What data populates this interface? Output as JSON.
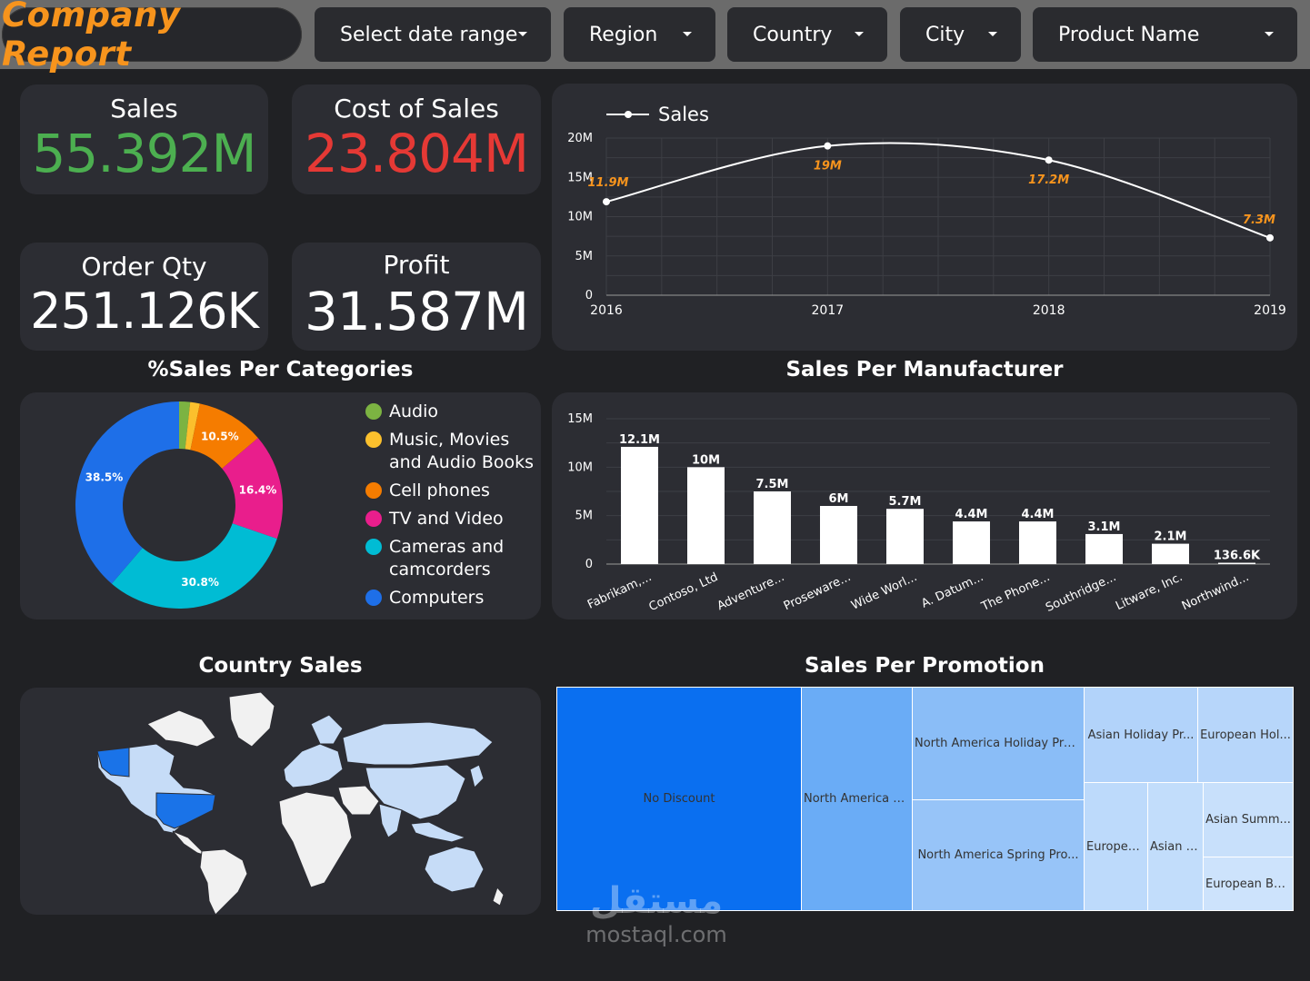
{
  "header": {
    "title": "Company Report",
    "filters": [
      "Select date range",
      "Region",
      "Country",
      "City",
      "Product Name"
    ]
  },
  "kpis": {
    "sales": {
      "label": "Sales",
      "value": "55.392M",
      "color": "#4caf50"
    },
    "cost": {
      "label": "Cost of Sales",
      "value": "23.804M",
      "color": "#e53935"
    },
    "order_qty": {
      "label": "Order Qty",
      "value": "251.126K",
      "color": "#ffffff"
    },
    "profit": {
      "label": "Profit",
      "value": "31.587M",
      "color": "#ffffff"
    }
  },
  "sections": {
    "categories": "%Sales Per Categories",
    "manufacturer": "Sales Per Manufacturer",
    "country": "Country Sales",
    "promotion": "Sales Per Promotion"
  },
  "chart_data": [
    {
      "type": "line",
      "series": [
        {
          "name": "Sales",
          "x": [
            "2016",
            "2017",
            "2018",
            "2019"
          ],
          "values": [
            11.9,
            19,
            17.2,
            7.3
          ]
        }
      ],
      "data_labels": [
        "11.9M",
        "19M",
        "17.2M",
        "7.3M"
      ],
      "y_ticks": [
        "0",
        "5M",
        "10M",
        "15M",
        "20M"
      ],
      "ylim": [
        0,
        20
      ],
      "grid": true,
      "legend": "top-left"
    },
    {
      "type": "pie",
      "title": "%Sales Per Categories",
      "labels": [
        "Audio",
        "Music, Movies and Audio Books",
        "Cell phones",
        "TV and Video",
        "Cameras and camcorders",
        "Computers"
      ],
      "legend_lines": [
        [
          "Audio"
        ],
        [
          "Music, Movies",
          "and Audio Books"
        ],
        [
          "Cell phones"
        ],
        [
          "TV and Video"
        ],
        [
          "Cameras and",
          "camcorders"
        ],
        [
          "Computers"
        ]
      ],
      "values": [
        1.7,
        1.5,
        10.5,
        16.4,
        30.8,
        38.5
      ],
      "slice_labels": [
        "",
        "",
        "10.5%",
        "16.4%",
        "30.8%",
        "38.5%"
      ],
      "colors": [
        "#7cb342",
        "#fbc02d",
        "#f57c00",
        "#e91e8c",
        "#00bcd4",
        "#1e6fe8"
      ],
      "legend": "right"
    },
    {
      "type": "bar",
      "title": "Sales Per Manufacturer",
      "categories": [
        "Fabrikam,...",
        "Contoso, Ltd",
        "Adventure...",
        "Proseware...",
        "Wide Worl...",
        "A. Datum...",
        "The Phone...",
        "Southridge...",
        "Litware, Inc.",
        "Northwind..."
      ],
      "values": [
        12.1,
        10,
        7.5,
        6,
        5.7,
        4.4,
        4.4,
        3.1,
        2.1,
        0.1366
      ],
      "data_labels": [
        "12.1M",
        "10M",
        "7.5M",
        "6M",
        "5.7M",
        "4.4M",
        "4.4M",
        "3.1M",
        "2.1M",
        "136.6K"
      ],
      "y_ticks": [
        "0",
        "5M",
        "10M",
        "15M"
      ],
      "ylim": [
        0,
        15
      ],
      "grid": true
    },
    {
      "type": "treemap",
      "title": "Sales Per Promotion",
      "labels": [
        "No Discount",
        "North America B...",
        "North America Holiday Pro...",
        "North America Spring Pro...",
        "Asian Holiday Pr...",
        "European Hol...",
        "Europea...",
        "Asian S...",
        "Asian Summ...",
        "European Ba..."
      ]
    }
  ],
  "map": {
    "highlight_color": "#1a73e8",
    "light_color": "#c6dcf7",
    "base_color": "#f1f1f1"
  },
  "watermark": {
    "arabic": "مستقل",
    "site": "mostaql.com"
  }
}
